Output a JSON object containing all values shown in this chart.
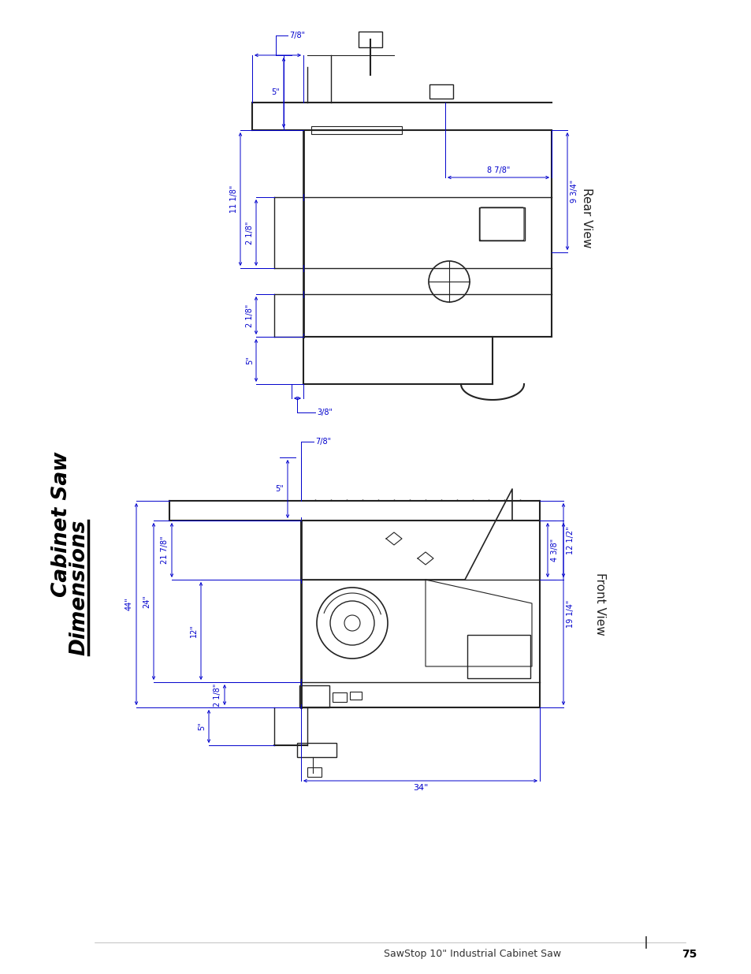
{
  "bg_color": "#ffffff",
  "line_color": "#0000cc",
  "drawing_color": "#222222",
  "title_part1": "Cabinet Saw",
  "title_part2": "Dimensions",
  "footer": "SawStop 10\" Industrial Cabinet Saw",
  "page_num": "75",
  "rear_view_label": "Rear View",
  "front_view_label": "Front View",
  "rear_dims": {
    "top_7_8": "7/8\"",
    "top_5": "5\"",
    "left_2_1_8_upper": "2 1/8\"",
    "left_11_1_8": "11 1/8\"",
    "left_2_1_8_lower": "2 1/8\"",
    "left_5": "5\"",
    "bottom_3_8": "3/8\"",
    "right_8_7_8": "8 7/8\"",
    "right_9_3_4": "9 3/4\""
  },
  "front_dims": {
    "top_7_8": "7/8\"",
    "top_5": "5\"",
    "left_44": "44\"",
    "left_24": "24\"",
    "left_21_7_8": "21 7/8\"",
    "left_12": "12\"",
    "left_2_1_8": "2 1/8\"",
    "left_5": "5\"",
    "bottom_34": "34\"",
    "right_12_1_2": "12 1/2\"",
    "right_4_3_8": "4 3/8\"",
    "right_19_1_4": "19 1/4\""
  }
}
